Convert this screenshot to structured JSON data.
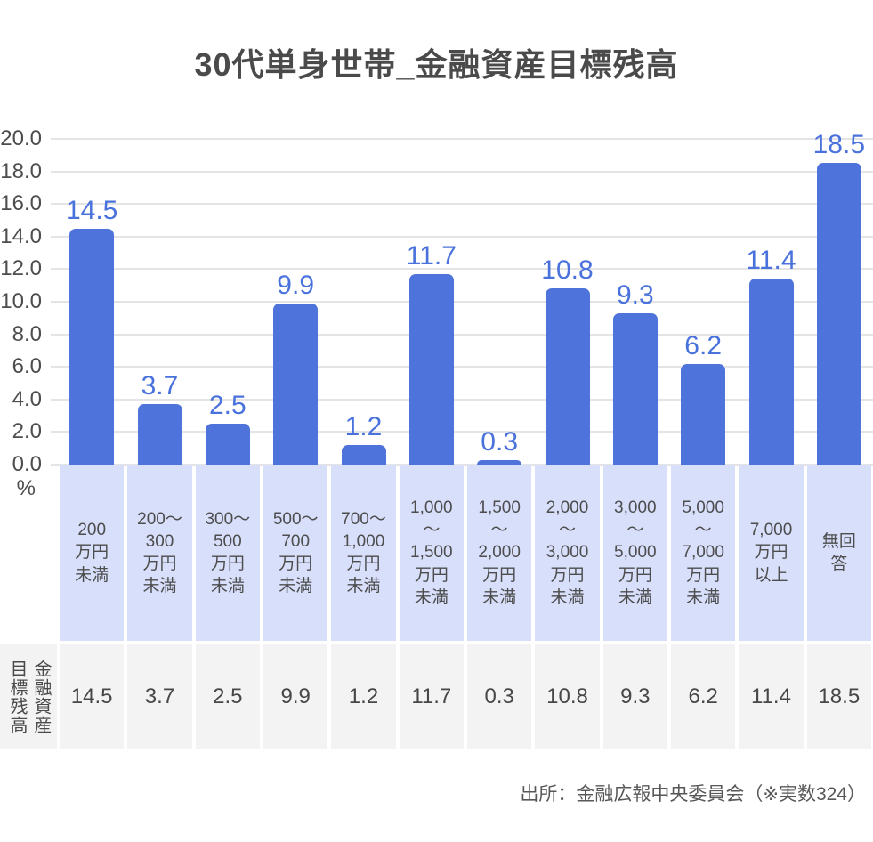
{
  "page": {
    "title": "30代単身世帯_金融資産目標残高",
    "source": "出所：金融広報中央委員会（※実数324）"
  },
  "colors": {
    "bar": "#4e74dc",
    "value_label": "#4a72dc",
    "category_band": "#d8dffb",
    "table_cell_bg": "#f3f3f3",
    "gridline": "#e4e4e4",
    "title_text": "#4a4a4a",
    "axis_text": "#4d4d4d",
    "table_text": "#474747"
  },
  "y_axis": {
    "ticks": [
      "20.0",
      "18.0",
      "16.0",
      "14.0",
      "12.0",
      "10.0",
      "8.0",
      "6.0",
      "4.0",
      "2.0",
      "0.0"
    ],
    "unit": "%"
  },
  "table": {
    "header": "金融資産\n目標残高",
    "values": [
      "14.5",
      "3.7",
      "2.5",
      "9.9",
      "1.2",
      "11.7",
      "0.3",
      "10.8",
      "9.3",
      "6.2",
      "11.4",
      "18.5"
    ]
  },
  "chart_data": {
    "type": "bar",
    "title": "30代単身世帯_金融資産目標残高",
    "categories": [
      "200万円未満",
      "200〜300万円未満",
      "300〜500万円未満",
      "500〜700万円未満",
      "700〜1,000万円未満",
      "1,000〜1,500万円未満",
      "1,500〜2,000万円未満",
      "2,000〜3,000万円未満",
      "3,000〜5,000万円未満",
      "5,000〜7,000万円未満",
      "7,000万円以上",
      "無回答"
    ],
    "category_lines": [
      "200\n万円\n未満",
      "200〜\n300\n万円\n未満",
      "300〜\n500\n万円\n未満",
      "500〜\n700\n万円\n未満",
      "700〜\n1,000\n万円\n未満",
      "1,000\n〜\n1,500\n万円\n未満",
      "1,500\n〜\n2,000\n万円\n未満",
      "2,000\n〜\n3,000\n万円\n未満",
      "3,000\n〜\n5,000\n万円\n未満",
      "5,000\n〜\n7,000\n万円\n未満",
      "7,000\n万円\n以上",
      "無回\n答"
    ],
    "values": [
      14.5,
      3.7,
      2.5,
      9.9,
      1.2,
      11.7,
      0.3,
      10.8,
      9.3,
      6.2,
      11.4,
      18.5
    ],
    "value_labels": [
      "14.5",
      "3.7",
      "2.5",
      "9.9",
      "1.2",
      "11.7",
      "0.3",
      "10.8",
      "9.3",
      "6.2",
      "11.4",
      "18.5"
    ],
    "xlabel": "",
    "ylabel": "%",
    "ylim": [
      0,
      20
    ],
    "ytick_step": 2,
    "grid": true,
    "legend": false,
    "source": "出所：金融広報中央委員会（※実数324）"
  }
}
